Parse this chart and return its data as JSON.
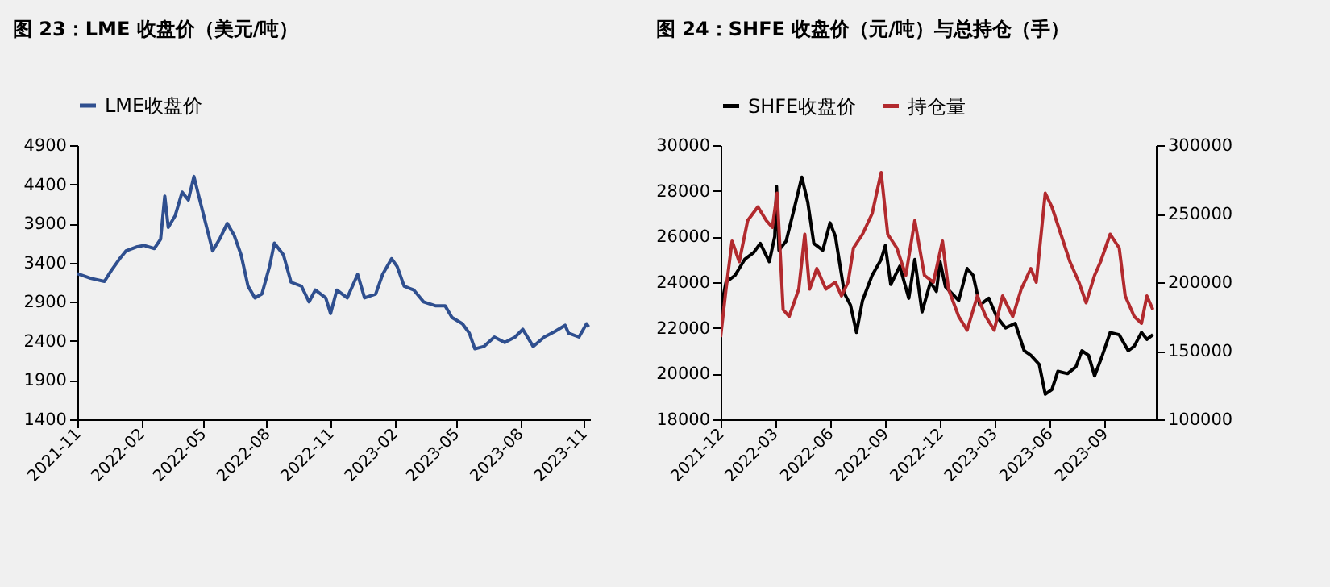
{
  "chart_data": [
    {
      "type": "line",
      "title": "图 23：LME 收盘价（美元/吨）",
      "legend": "top",
      "grid": false,
      "xlim": [
        "2021-11-01",
        "2023-11-10"
      ],
      "xticks": [
        "2021-11",
        "2022-02",
        "2022-05",
        "2022-08",
        "2022-11",
        "2023-02",
        "2023-05",
        "2023-08",
        "2023-11"
      ],
      "ylim": [
        1400,
        4900
      ],
      "yticks": [
        1400,
        1900,
        2400,
        2900,
        3400,
        3900,
        4400,
        4900
      ],
      "x": [
        "2021-11-01",
        "2021-11-20",
        "2021-12-10",
        "2021-12-20",
        "2022-01-01",
        "2022-01-10",
        "2022-01-25",
        "2022-02-05",
        "2022-02-20",
        "2022-03-01",
        "2022-03-07",
        "2022-03-12",
        "2022-03-22",
        "2022-04-01",
        "2022-04-10",
        "2022-04-18",
        "2022-04-25",
        "2022-05-05",
        "2022-05-15",
        "2022-05-25",
        "2022-06-05",
        "2022-06-15",
        "2022-06-25",
        "2022-07-05",
        "2022-07-15",
        "2022-07-25",
        "2022-08-05",
        "2022-08-12",
        "2022-08-25",
        "2022-09-05",
        "2022-09-20",
        "2022-10-01",
        "2022-10-10",
        "2022-10-25",
        "2022-11-01",
        "2022-11-10",
        "2022-11-25",
        "2022-12-10",
        "2022-12-20",
        "2023-01-05",
        "2023-01-15",
        "2023-01-28",
        "2023-02-05",
        "2023-02-15",
        "2023-03-01",
        "2023-03-15",
        "2023-04-01",
        "2023-04-15",
        "2023-04-25",
        "2023-05-10",
        "2023-05-20",
        "2023-05-28",
        "2023-06-10",
        "2023-06-25",
        "2023-07-10",
        "2023-07-25",
        "2023-08-05",
        "2023-08-20",
        "2023-09-05",
        "2023-09-20",
        "2023-10-05",
        "2023-10-10",
        "2023-10-25",
        "2023-11-05",
        "2023-11-08"
      ],
      "series": [
        {
          "name": "LME收盘价",
          "color": "#2f4f8f",
          "values": [
            3260,
            3200,
            3160,
            3300,
            3450,
            3550,
            3600,
            3620,
            3580,
            3700,
            4250,
            3850,
            4000,
            4300,
            4200,
            4500,
            4250,
            3900,
            3550,
            3700,
            3900,
            3750,
            3500,
            3100,
            2950,
            3000,
            3350,
            3650,
            3500,
            3150,
            3100,
            2900,
            3050,
            2950,
            2750,
            3050,
            2950,
            3250,
            2950,
            3000,
            3250,
            3450,
            3350,
            3100,
            3050,
            2900,
            2850,
            2850,
            2700,
            2620,
            2500,
            2300,
            2330,
            2450,
            2380,
            2450,
            2550,
            2330,
            2450,
            2520,
            2600,
            2500,
            2450,
            2620,
            2580
          ]
        }
      ]
    },
    {
      "type": "line",
      "title": "图 24：SHFE 收盘价（元/吨）与总持仓（手）",
      "legend": "top",
      "grid": false,
      "xlim": [
        "2021-12-01",
        "2023-11-25"
      ],
      "xticks": [
        "2021-12",
        "2022-03",
        "2022-06",
        "2022-09",
        "2022-12",
        "2023-03",
        "2023-06",
        "2023-09"
      ],
      "ylim": [
        18000,
        30000
      ],
      "yticks": [
        18000,
        20000,
        22000,
        24000,
        26000,
        28000,
        30000
      ],
      "y2lim": [
        100000,
        300000
      ],
      "y2ticks": [
        100000,
        150000,
        200000,
        250000,
        300000
      ],
      "series": [
        {
          "name": "SHFE收盘价",
          "color": "#000000",
          "x": [
            "2021-12-01",
            "2021-12-10",
            "2021-12-25",
            "2022-01-10",
            "2022-01-25",
            "2022-02-05",
            "2022-02-20",
            "2022-03-01",
            "2022-03-04",
            "2022-03-08",
            "2022-03-20",
            "2022-04-05",
            "2022-04-15",
            "2022-04-25",
            "2022-05-05",
            "2022-05-20",
            "2022-06-01",
            "2022-06-10",
            "2022-06-25",
            "2022-07-05",
            "2022-07-15",
            "2022-07-25",
            "2022-08-10",
            "2022-08-25",
            "2022-09-01",
            "2022-09-10",
            "2022-09-25",
            "2022-10-10",
            "2022-10-20",
            "2022-11-01",
            "2022-11-15",
            "2022-11-25",
            "2022-12-01",
            "2022-12-10",
            "2023-01-01",
            "2023-01-15",
            "2023-01-25",
            "2023-02-05",
            "2023-02-20",
            "2023-03-05",
            "2023-03-20",
            "2023-04-05",
            "2023-04-20",
            "2023-05-01",
            "2023-05-15",
            "2023-05-25",
            "2023-06-05",
            "2023-06-15",
            "2023-07-01",
            "2023-07-15",
            "2023-07-25",
            "2023-08-05",
            "2023-08-15",
            "2023-08-28",
            "2023-09-10",
            "2023-09-25",
            "2023-10-10",
            "2023-10-20",
            "2023-11-01",
            "2023-11-10",
            "2023-11-20"
          ],
          "values": [
            22800,
            24000,
            24300,
            25000,
            25300,
            25700,
            24900,
            26000,
            28200,
            25400,
            25800,
            27500,
            28600,
            27500,
            25700,
            25400,
            26600,
            26000,
            23500,
            23000,
            21800,
            23200,
            24300,
            25000,
            25600,
            23900,
            24700,
            23300,
            25000,
            22700,
            24000,
            23600,
            24900,
            23800,
            23200,
            24600,
            24300,
            23000,
            23300,
            22500,
            22000,
            22200,
            21000,
            20800,
            20400,
            19100,
            19300,
            20100,
            20000,
            20300,
            21000,
            20800,
            19900,
            20800,
            21800,
            21700,
            21000,
            21200,
            21800,
            21500,
            21700
          ]
        },
        {
          "name": "持仓量",
          "color": "#b22a2e",
          "axis": "y2",
          "x": [
            "2021-12-01",
            "2021-12-10",
            "2021-12-20",
            "2022-01-01",
            "2022-01-15",
            "2022-02-01",
            "2022-02-15",
            "2022-02-25",
            "2022-03-05",
            "2022-03-15",
            "2022-03-25",
            "2022-04-10",
            "2022-04-20",
            "2022-04-28",
            "2022-05-10",
            "2022-05-25",
            "2022-06-10",
            "2022-06-20",
            "2022-07-01",
            "2022-07-10",
            "2022-07-25",
            "2022-08-10",
            "2022-08-25",
            "2022-09-05",
            "2022-09-20",
            "2022-10-05",
            "2022-10-20",
            "2022-11-05",
            "2022-11-20",
            "2022-12-05",
            "2022-12-15",
            "2023-01-01",
            "2023-01-15",
            "2023-02-01",
            "2023-02-15",
            "2023-03-01",
            "2023-03-15",
            "2023-04-01",
            "2023-04-15",
            "2023-05-01",
            "2023-05-10",
            "2023-05-25",
            "2023-06-05",
            "2023-06-20",
            "2023-07-05",
            "2023-07-20",
            "2023-08-01",
            "2023-08-15",
            "2023-08-25",
            "2023-09-10",
            "2023-09-25",
            "2023-10-05",
            "2023-10-20",
            "2023-11-01",
            "2023-11-10",
            "2023-11-20"
          ],
          "values": [
            160000,
            195000,
            230000,
            215000,
            245000,
            255000,
            245000,
            240000,
            265000,
            180000,
            175000,
            195000,
            235000,
            195000,
            210000,
            195000,
            200000,
            190000,
            200000,
            225000,
            235000,
            250000,
            280000,
            235000,
            225000,
            205000,
            245000,
            205000,
            200000,
            230000,
            195000,
            175000,
            165000,
            190000,
            175000,
            165000,
            190000,
            175000,
            195000,
            210000,
            200000,
            265000,
            255000,
            235000,
            215000,
            200000,
            185000,
            205000,
            215000,
            235000,
            225000,
            190000,
            175000,
            170000,
            190000,
            180000
          ]
        }
      ]
    }
  ]
}
